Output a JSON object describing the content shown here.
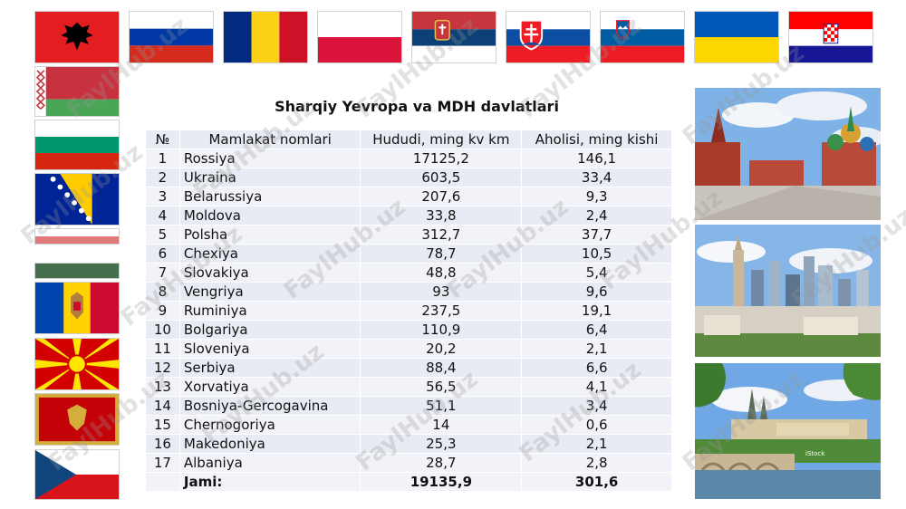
{
  "title": "Sharqiy Yevropa va MDH davlatlari",
  "table": {
    "headers": {
      "no": "№",
      "name": "Mamlakat nomlari",
      "area": "Hududi, ming kv km",
      "population": "Aholisi, ming kishi"
    },
    "rows": [
      {
        "no": "1",
        "name": "Rossiya",
        "area": "17125,2",
        "population": "146,1"
      },
      {
        "no": "2",
        "name": "Ukraina",
        "area": "603,5",
        "population": "33,4"
      },
      {
        "no": "3",
        "name": "Belarussiya",
        "area": "207,6",
        "population": "9,3"
      },
      {
        "no": "4",
        "name": "Moldova",
        "area": "33,8",
        "population": "2,4"
      },
      {
        "no": "5",
        "name": "Polsha",
        "area": "312,7",
        "population": "37,7"
      },
      {
        "no": "6",
        "name": "Chexiya",
        "area": "78,7",
        "population": "10,5"
      },
      {
        "no": "7",
        "name": "Slovakiya",
        "area": "48,8",
        "population": "5,4"
      },
      {
        "no": "8",
        "name": "Vengriya",
        "area": "93",
        "population": "9,6"
      },
      {
        "no": "9",
        "name": "Ruminiya",
        "area": "237,5",
        "population": "19,1"
      },
      {
        "no": "10",
        "name": "Bolgariya",
        "area": "110,9",
        "population": "6,4"
      },
      {
        "no": "11",
        "name": "Sloveniya",
        "area": "20,2",
        "population": "2,1"
      },
      {
        "no": "12",
        "name": "Serbiya",
        "area": "88,4",
        "population": "6,6"
      },
      {
        "no": "13",
        "name": "Xorvatiya",
        "area": "56,5",
        "population": "4,1"
      },
      {
        "no": "14",
        "name": "Bosniya-Gercogavina",
        "area": "51,1",
        "population": "3,4"
      },
      {
        "no": "15",
        "name": "Chernogoriya",
        "area": "14",
        "population": "0,6"
      },
      {
        "no": "16",
        "name": "Makedoniya",
        "area": "25,3",
        "population": "2,1"
      },
      {
        "no": "17",
        "name": "Albaniya",
        "area": "28,7",
        "population": "2,8"
      }
    ],
    "total": {
      "label": "Jami:",
      "area": "19135,9",
      "population": "301,6"
    }
  },
  "watermark": "FaylHub.uz",
  "photo_caption": "iStock",
  "flags": [
    "albania-flag",
    "russia-flag",
    "romania-flag",
    "poland-flag",
    "serbia-flag",
    "slovakia-flag",
    "slovenia-flag",
    "ukraine-flag",
    "croatia-flag",
    "belarus-flag",
    "bulgaria-flag",
    "bosnia-flag",
    "hungary-flag",
    "moldova-flag",
    "macedonia-flag",
    "montenegro-flag",
    "czechia-flag"
  ]
}
